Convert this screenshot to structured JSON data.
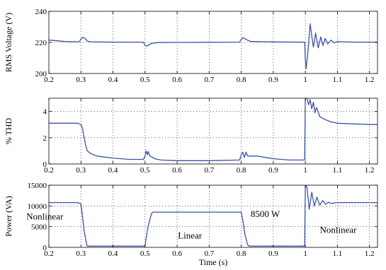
{
  "chart_data": [
    {
      "type": "line",
      "ylabel": "RMS Voltage (V)",
      "xlabel": "",
      "xlim": [
        0.2,
        1.225
      ],
      "ylim": [
        200,
        240
      ],
      "x_ticks": [
        "0.2",
        "0.3",
        "0.4",
        "0.5",
        "0.6",
        "0.7",
        "0.8",
        "0.9",
        "1",
        "1.1",
        "1.2"
      ],
      "y_ticks": [
        "200",
        "220",
        "240"
      ],
      "grid": "dotted",
      "series": [
        {
          "color": "#3a53a4",
          "x": [
            0.2,
            0.25,
            0.295,
            0.3,
            0.305,
            0.31,
            0.315,
            0.32,
            0.33,
            0.4,
            0.495,
            0.5,
            0.505,
            0.51,
            0.52,
            0.53,
            0.54,
            0.6,
            0.7,
            0.795,
            0.8,
            0.805,
            0.81,
            0.82,
            0.83,
            0.9,
            0.998,
            1.0,
            1.002,
            1.008,
            1.015,
            1.02,
            1.025,
            1.032,
            1.04,
            1.048,
            1.055,
            1.062,
            1.07,
            1.08,
            1.09,
            1.1,
            1.15,
            1.225
          ],
          "y": [
            221.5,
            220.6,
            220.4,
            222.2,
            223.2,
            223.0,
            222.2,
            220.8,
            220.4,
            220.2,
            220.2,
            218.0,
            217.6,
            218.2,
            219.3,
            219.7,
            219.9,
            220.0,
            220.1,
            220.2,
            222.0,
            223.0,
            222.6,
            221.4,
            220.6,
            220.3,
            220.2,
            209.0,
            203.0,
            214.0,
            232.0,
            224.0,
            217.0,
            226.0,
            216.5,
            223.5,
            218.0,
            222.5,
            219.0,
            221.5,
            219.7,
            220.5,
            220.2,
            220.2
          ]
        }
      ]
    },
    {
      "type": "line",
      "ylabel": "% THD",
      "xlabel": "",
      "xlim": [
        0.2,
        1.225
      ],
      "ylim": [
        0,
        5
      ],
      "x_ticks": [
        "0.2",
        "0.3",
        "0.4",
        "0.5",
        "0.6",
        "0.7",
        "0.8",
        "0.9",
        "1",
        "1.1",
        "1.2"
      ],
      "y_ticks": [
        "0",
        "2",
        "4"
      ],
      "grid": "dotted",
      "series": [
        {
          "color": "#3a53a4",
          "x": [
            0.2,
            0.29,
            0.3,
            0.305,
            0.31,
            0.315,
            0.32,
            0.33,
            0.35,
            0.4,
            0.45,
            0.495,
            0.5,
            0.503,
            0.507,
            0.51,
            0.515,
            0.52,
            0.53,
            0.55,
            0.6,
            0.7,
            0.795,
            0.8,
            0.805,
            0.81,
            0.815,
            0.82,
            0.83,
            0.85,
            0.9,
            0.95,
            0.998,
            1.0,
            1.005,
            1.01,
            1.015,
            1.02,
            1.025,
            1.03,
            1.035,
            1.045,
            1.06,
            1.08,
            1.1,
            1.15,
            1.2,
            1.225
          ],
          "y": [
            3.1,
            3.1,
            3.0,
            2.7,
            2.0,
            1.4,
            1.0,
            0.8,
            0.6,
            0.45,
            0.35,
            0.35,
            0.6,
            1.0,
            0.7,
            0.95,
            0.6,
            0.55,
            0.4,
            0.3,
            0.25,
            0.25,
            0.3,
            0.7,
            0.9,
            0.5,
            0.9,
            0.6,
            0.6,
            0.6,
            0.4,
            0.3,
            0.3,
            5.0,
            5.0,
            4.5,
            4.9,
            4.2,
            4.7,
            3.9,
            4.3,
            3.6,
            3.4,
            3.2,
            3.1,
            3.05,
            3.0,
            3.0
          ]
        }
      ]
    },
    {
      "type": "line",
      "ylabel": "Power (VA)",
      "xlabel": "Time (s)",
      "xlim": [
        0.2,
        1.225
      ],
      "ylim": [
        0,
        15000
      ],
      "x_ticks": [
        "0.2",
        "0.3",
        "0.4",
        "0.5",
        "0.6",
        "0.7",
        "0.8",
        "0.9",
        "1",
        "1.1",
        "1.2"
      ],
      "y_ticks": [
        "0",
        "5000",
        "10000",
        "15000"
      ],
      "grid": "dotted",
      "annotations": [
        "Nonlinear",
        "Linear",
        "8500 W",
        "Nonlinear"
      ],
      "series": [
        {
          "color": "#3a53a4",
          "x": [
            0.2,
            0.29,
            0.3,
            0.305,
            0.31,
            0.318,
            0.32,
            0.4,
            0.5,
            0.502,
            0.51,
            0.52,
            0.525,
            0.6,
            0.7,
            0.8,
            0.805,
            0.812,
            0.82,
            0.825,
            0.9,
            0.998,
            1.0,
            1.005,
            1.012,
            1.02,
            1.028,
            1.036,
            1.045,
            1.054,
            1.063,
            1.072,
            1.08,
            1.1,
            1.2,
            1.225
          ],
          "y": [
            10800,
            10800,
            10500,
            7500,
            4000,
            600,
            300,
            300,
            300,
            1500,
            5200,
            8200,
            8500,
            8500,
            8500,
            8500,
            6500,
            3000,
            600,
            300,
            300,
            300,
            15000,
            14600,
            9200,
            13300,
            10000,
            12100,
            10200,
            11300,
            10400,
            10900,
            10600,
            10800,
            10800,
            10800
          ]
        }
      ]
    }
  ]
}
